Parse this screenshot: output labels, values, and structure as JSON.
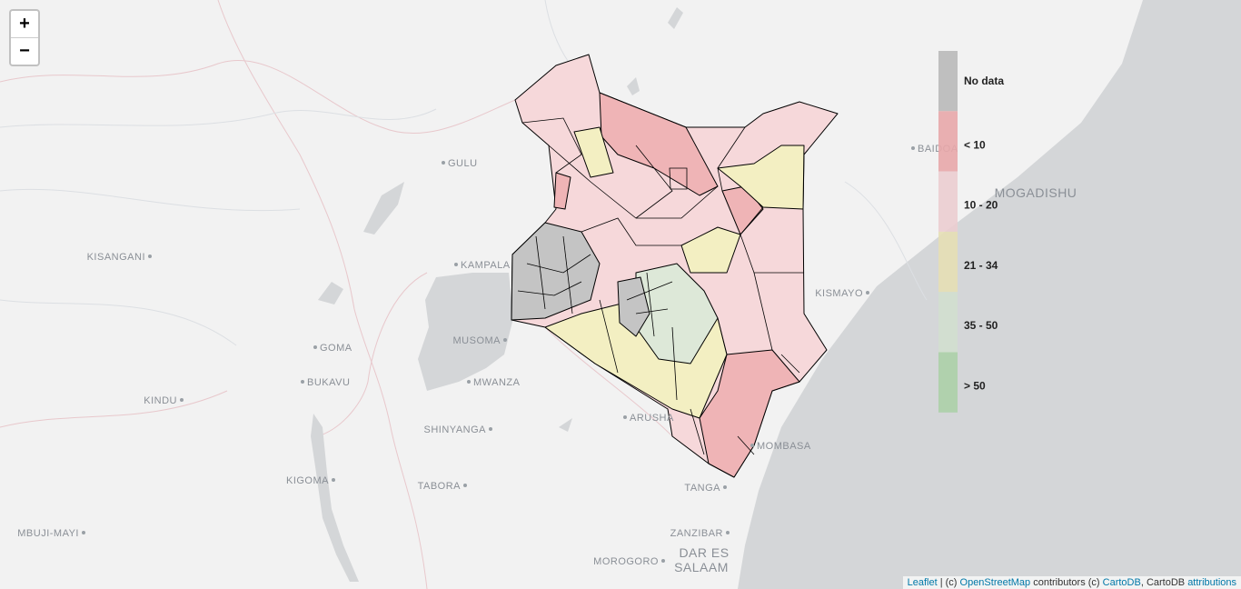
{
  "zoom": {
    "in": "+",
    "out": "−"
  },
  "places": [
    "GULU",
    "KISANGANI",
    "KAMPALA",
    "GOMA",
    "BUKAVU",
    "KINDU",
    "MUSOMA",
    "MWANZA",
    "SHINYANGA",
    "ARUSHA",
    "KIGOMA",
    "TABORA",
    "TANGA",
    "MBUJI-MAYI",
    "ZANZIBAR",
    "MOROGORO",
    "DAR ES",
    "SALAAM",
    "MOGADISHU",
    "KISMAYO",
    "BAIDOA",
    "MOMBASA"
  ],
  "legend": {
    "items": [
      "No data",
      "< 10",
      "10 - 20",
      "21 - 34",
      "35 - 50",
      "> 50"
    ]
  },
  "attribution": {
    "leaflet": "Leaflet",
    "sep": " | (c) ",
    "osm": "OpenStreetMap",
    "mid": " contributors (c) ",
    "carto": "CartoDB",
    "tail": ", CartoDB ",
    "attr": "attributions"
  }
}
